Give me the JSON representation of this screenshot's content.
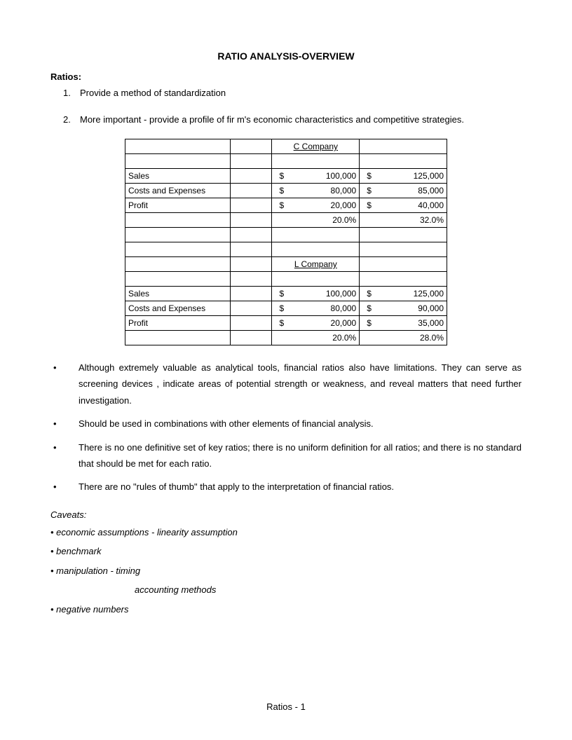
{
  "title": "RATIO ANALYSIS-OVERVIEW",
  "ratios_label": "Ratios:",
  "numbered": {
    "n1": "1.",
    "t1": "Provide a method of standardization",
    "n2": "2.",
    "t2": "More important - provide a profile of fir   m's economic characteristics and competitive strategies."
  },
  "table": {
    "c_header": "C Company",
    "l_header": "L Company",
    "row_sales": "Sales",
    "row_costs": "Costs and Expenses",
    "row_profit": "Profit",
    "sym": "$",
    "c": {
      "sales1": "100,000",
      "sales2": "125,000",
      "costs1": "80,000",
      "costs2": "85,000",
      "profit1": "20,000",
      "profit2": "40,000",
      "pct1": "20.0%",
      "pct2": "32.0%"
    },
    "l": {
      "sales1": "100,000",
      "sales2": "125,000",
      "costs1": "80,000",
      "costs2": "90,000",
      "profit1": "20,000",
      "profit2": "35,000",
      "pct1": "20.0%",
      "pct2": "28.0%"
    }
  },
  "bullets": {
    "dot": "•",
    "b1": "Although extremely valuable  as analytical tools, financial ratios also have  limitations.    They can serve as screening devices  , indicate areas of potential strength or weakness, and reveal  matters that need further investigation.",
    "b2": "Should be used in combinations with other elements of financial analysis.",
    "b3": "There is no one definitive  set of key ratios; there is no uniform  definition for all ratios; and there is no standard that should be met for each ratio.",
    "b4": "There are no \"rules of thumb\" that apply to the interpretation of financial ratios."
  },
  "caveats": {
    "label": "Caveats:",
    "c1": "• economic assumptions - linearity assumption",
    "c2": "• benchmark",
    "c3": "• manipulation - timing",
    "c3b": "accounting methods",
    "c4": "• negative numbers"
  },
  "footer": "Ratios - 1"
}
